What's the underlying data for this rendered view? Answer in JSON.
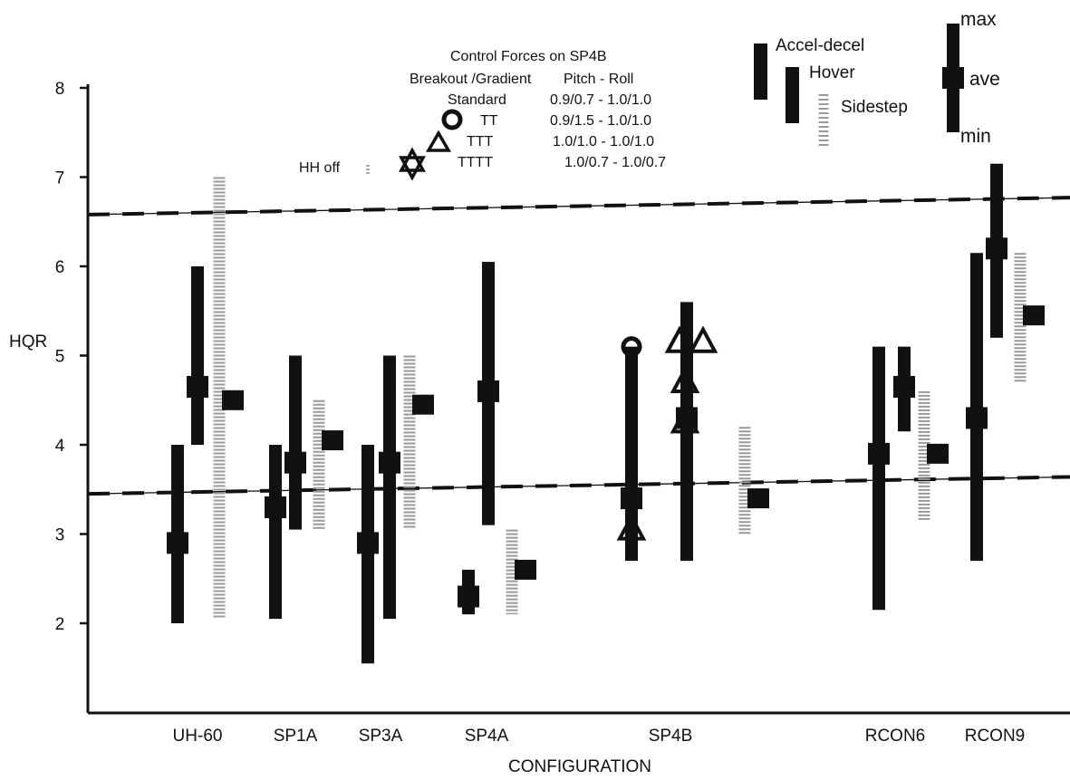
{
  "chart_data": {
    "type": "range",
    "ylabel": "HQR",
    "xlabel": "CONFIGURATION",
    "ylim": [
      1,
      8
    ],
    "yticks": [
      2,
      3,
      4,
      5,
      6,
      7,
      8
    ],
    "categories": [
      "UH-60",
      "SP1A",
      "SP3A",
      "SP4A",
      "SP4B",
      "RCON6",
      "RCON9"
    ],
    "reference_lines": [
      3.45,
      6.6
    ],
    "series": [
      {
        "name": "Accel-decel",
        "color": "#111111",
        "style": "solid",
        "points": [
          {
            "category": "UH-60",
            "min": 2.0,
            "ave": 2.9,
            "max": 4.0
          },
          {
            "category": "SP1A",
            "min": 2.05,
            "ave": 3.3,
            "max": 4.0
          },
          {
            "category": "SP3A",
            "min": 1.55,
            "ave": 2.9,
            "max": 4.0
          },
          {
            "category": "SP4A",
            "min": 2.1,
            "ave": 2.3,
            "max": 2.6
          },
          {
            "category": "SP4B",
            "min": 2.7,
            "ave": 3.4,
            "max": 5.1
          },
          {
            "category": "RCON6",
            "min": 2.15,
            "ave": 3.9,
            "max": 5.1
          },
          {
            "category": "RCON9",
            "min": 2.7,
            "ave": 4.3,
            "max": 6.15
          }
        ]
      },
      {
        "name": "Hover",
        "color": "#111111",
        "style": "solid",
        "points": [
          {
            "category": "UH-60",
            "min": 4.0,
            "ave": 4.65,
            "max": 6.0
          },
          {
            "category": "SP1A",
            "min": 3.05,
            "ave": 3.8,
            "max": 5.0
          },
          {
            "category": "SP3A",
            "min": 2.05,
            "ave": 3.8,
            "max": 5.0
          },
          {
            "category": "SP4A",
            "min": 3.1,
            "ave": 4.6,
            "max": 6.05
          },
          {
            "category": "SP4B",
            "min": 2.7,
            "ave": 4.3,
            "max": 5.6
          },
          {
            "category": "RCON6",
            "min": 4.15,
            "ave": 4.65,
            "max": 5.1
          },
          {
            "category": "RCON9",
            "min": 5.2,
            "ave": 6.2,
            "max": 7.15
          }
        ]
      },
      {
        "name": "Sidestep",
        "color": "#9a9a9a",
        "style": "dotted",
        "points": [
          {
            "category": "UH-60",
            "min": 2.05,
            "ave": 4.5,
            "max": 7.0
          },
          {
            "category": "SP1A",
            "min": 3.05,
            "ave": 4.05,
            "max": 4.5
          },
          {
            "category": "SP3A",
            "min": 3.05,
            "ave": 4.45,
            "max": 5.0
          },
          {
            "category": "SP4A",
            "min": 2.1,
            "ave": 2.6,
            "max": 3.05
          },
          {
            "category": "SP4B",
            "min": 3.0,
            "ave": 3.4,
            "max": 4.2
          },
          {
            "category": "RCON6",
            "min": 3.15,
            "ave": 3.9,
            "max": 4.6
          },
          {
            "category": "RCON9",
            "min": 4.7,
            "ave": 5.45,
            "max": 6.15
          }
        ]
      }
    ],
    "sp4b_markers": [
      {
        "shape": "circle",
        "y": 5.1
      },
      {
        "shape": "triangle",
        "y": 5.15
      },
      {
        "shape": "triangle",
        "y": 5.15
      },
      {
        "shape": "triangle",
        "y": 4.7
      },
      {
        "shape": "triangle",
        "y": 4.25
      },
      {
        "shape": "triangle",
        "y": 3.05
      }
    ],
    "control_forces": {
      "title": "Control Forces on SP4B",
      "header_left": "Breakout /Gradient",
      "header_right": "Pitch - Roll",
      "rows": [
        {
          "label": "Standard",
          "value": "0.9/0.7 - 1.0/1.0"
        },
        {
          "label": "TT",
          "value": "0.9/1.5 - 1.0/1.0"
        },
        {
          "label": "TTT",
          "value": "1.0/1.0 - 1.0/1.0"
        },
        {
          "label": "TTTT",
          "value": "1.0/0.7 - 1.0/0.7"
        }
      ],
      "hh_off": "HH off"
    },
    "legend": {
      "items": [
        "Accel-decel",
        "Hover",
        "Sidestep"
      ],
      "key_labels": {
        "max": "max",
        "ave": "ave",
        "min": "min"
      }
    }
  }
}
